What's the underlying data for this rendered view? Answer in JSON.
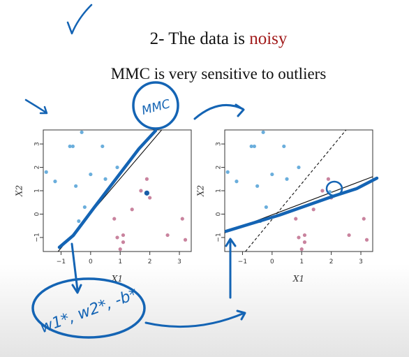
{
  "slide": {
    "title_prefix": "2- The data is ",
    "title_highlight": "noisy",
    "subtitle": "MMC is very sensitive to outliers"
  },
  "annotations": {
    "circle_label": "MMC",
    "formula": "w1*, w2*, -b*"
  },
  "colors": {
    "blue_points": "#6aaedc",
    "red_points": "#c9839e",
    "ink": "#1464b4",
    "outlier": "#1a5ea8"
  },
  "chart_data": [
    {
      "type": "scatter",
      "title": "",
      "xlabel": "X1",
      "ylabel": "X2",
      "xlim": [
        -1.6,
        3.4
      ],
      "ylim": [
        -1.6,
        3.6
      ],
      "xticks": [
        -1,
        0,
        1,
        2,
        3
      ],
      "yticks": [
        -1,
        0,
        1,
        2,
        3
      ],
      "grid": false,
      "series": [
        {
          "color": "blue",
          "points": [
            [
              -0.3,
              3.5
            ],
            [
              -0.7,
              2.9
            ],
            [
              -0.6,
              2.9
            ],
            [
              0.4,
              2.9
            ],
            [
              -1.5,
              1.8
            ],
            [
              0.0,
              1.7
            ],
            [
              0.9,
              2.0
            ],
            [
              -1.2,
              1.4
            ],
            [
              -0.5,
              1.2
            ],
            [
              0.5,
              1.5
            ],
            [
              -0.2,
              0.3
            ],
            [
              -0.4,
              -0.3
            ]
          ]
        },
        {
          "color": "red",
          "points": [
            [
              1.9,
              1.5
            ],
            [
              1.7,
              1.0
            ],
            [
              2.0,
              0.7
            ],
            [
              1.4,
              0.2
            ],
            [
              0.8,
              -0.2
            ],
            [
              1.1,
              -0.9
            ],
            [
              0.9,
              -1.0
            ],
            [
              1.1,
              -1.2
            ],
            [
              1.0,
              -1.5
            ],
            [
              2.6,
              -0.9
            ],
            [
              3.1,
              -0.2
            ],
            [
              3.2,
              -1.1
            ]
          ]
        },
        {
          "color": "highlight",
          "points": [
            [
              1.9,
              0.9
            ]
          ]
        }
      ],
      "lines": [
        {
          "style": "solid",
          "from": [
            -1.1,
            -1.6
          ],
          "to": [
            2.4,
            3.6
          ]
        }
      ]
    },
    {
      "type": "scatter",
      "title": "",
      "xlabel": "X1",
      "ylabel": "X2",
      "xlim": [
        -1.6,
        3.4
      ],
      "ylim": [
        -1.6,
        3.6
      ],
      "xticks": [
        -1,
        0,
        1,
        2,
        3
      ],
      "yticks": [
        -1,
        0,
        1,
        2,
        3
      ],
      "grid": false,
      "series": [
        {
          "color": "blue",
          "points": [
            [
              -0.3,
              3.5
            ],
            [
              -0.7,
              2.9
            ],
            [
              -0.6,
              2.9
            ],
            [
              0.4,
              2.9
            ],
            [
              -1.5,
              1.8
            ],
            [
              0.0,
              1.7
            ],
            [
              0.9,
              2.0
            ],
            [
              -1.2,
              1.4
            ],
            [
              -0.5,
              1.2
            ],
            [
              0.5,
              1.5
            ],
            [
              -0.2,
              0.3
            ],
            [
              -0.4,
              -0.3
            ]
          ]
        },
        {
          "color": "red",
          "points": [
            [
              1.9,
              1.5
            ],
            [
              1.7,
              1.0
            ],
            [
              2.0,
              0.7
            ],
            [
              1.4,
              0.2
            ],
            [
              0.8,
              -0.2
            ],
            [
              1.1,
              -0.9
            ],
            [
              0.9,
              -1.0
            ],
            [
              1.1,
              -1.2
            ],
            [
              1.0,
              -1.5
            ],
            [
              2.6,
              -0.9
            ],
            [
              3.1,
              -0.2
            ],
            [
              3.2,
              -1.1
            ]
          ]
        },
        {
          "color": "highlight-blue",
          "points": [
            [
              1.95,
              0.95
            ]
          ]
        }
      ],
      "lines": [
        {
          "style": "dashed",
          "from": [
            -0.9,
            -1.6
          ],
          "to": [
            2.5,
            3.6
          ]
        },
        {
          "style": "solid",
          "from": [
            -1.6,
            -0.8
          ],
          "to": [
            3.4,
            1.6
          ]
        }
      ]
    }
  ]
}
